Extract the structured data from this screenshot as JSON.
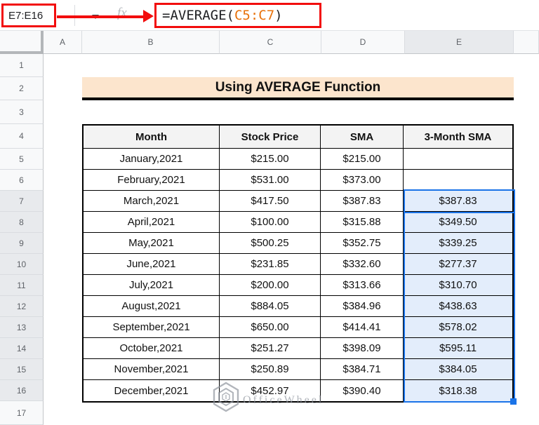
{
  "formula_bar": {
    "name_box": "E7:E16",
    "fx_label": "fx",
    "formula_prefix": "=AVERAGE(",
    "formula_range": "C5:C7",
    "formula_suffix": ")"
  },
  "column_headers": [
    "A",
    "B",
    "C",
    "D",
    "E",
    ""
  ],
  "row_headers": [
    "1",
    "2",
    "3",
    "4",
    "5",
    "6",
    "7",
    "8",
    "9",
    "10",
    "11",
    "12",
    "13",
    "14",
    "15",
    "16",
    "17"
  ],
  "title": "Using AVERAGE Function",
  "table": {
    "headers": [
      "Month",
      "Stock Price",
      "SMA",
      "3-Month SMA"
    ],
    "rows": [
      {
        "month": "January,2021",
        "stock_price": "$215.00",
        "sma": "$215.00",
        "sma3": ""
      },
      {
        "month": "February,2021",
        "stock_price": "$531.00",
        "sma": "$373.00",
        "sma3": ""
      },
      {
        "month": "March,2021",
        "stock_price": "$417.50",
        "sma": "$387.83",
        "sma3": "$387.83"
      },
      {
        "month": "April,2021",
        "stock_price": "$100.00",
        "sma": "$315.88",
        "sma3": "$349.50"
      },
      {
        "month": "May,2021",
        "stock_price": "$500.25",
        "sma": "$352.75",
        "sma3": "$339.25"
      },
      {
        "month": "June,2021",
        "stock_price": "$231.85",
        "sma": "$332.60",
        "sma3": "$277.37"
      },
      {
        "month": "July,2021",
        "stock_price": "$200.00",
        "sma": "$313.66",
        "sma3": "$310.70"
      },
      {
        "month": "August,2021",
        "stock_price": "$884.05",
        "sma": "$384.96",
        "sma3": "$438.63"
      },
      {
        "month": "September,2021",
        "stock_price": "$650.00",
        "sma": "$414.41",
        "sma3": "$578.02"
      },
      {
        "month": "October,2021",
        "stock_price": "$251.27",
        "sma": "$398.09",
        "sma3": "$595.11"
      },
      {
        "month": "November,2021",
        "stock_price": "$250.89",
        "sma": "$384.71",
        "sma3": "$384.05"
      },
      {
        "month": "December,2021",
        "stock_price": "$452.97",
        "sma": "$390.40",
        "sma3": "$318.38"
      }
    ]
  },
  "selection": {
    "range": "E7:E16",
    "selected_column": "E",
    "selected_rows_from": 7,
    "selected_rows_to": 16
  },
  "watermark": "OfficeWheel",
  "colors": {
    "annotation-red": "#f20d0d",
    "range-ref-orange": "#e8710a",
    "selection-blue": "#1a73e8",
    "selection-fill": "#e3edfb",
    "title-bg": "#fce5cd",
    "table-header-fill": "#f3f3f3"
  }
}
